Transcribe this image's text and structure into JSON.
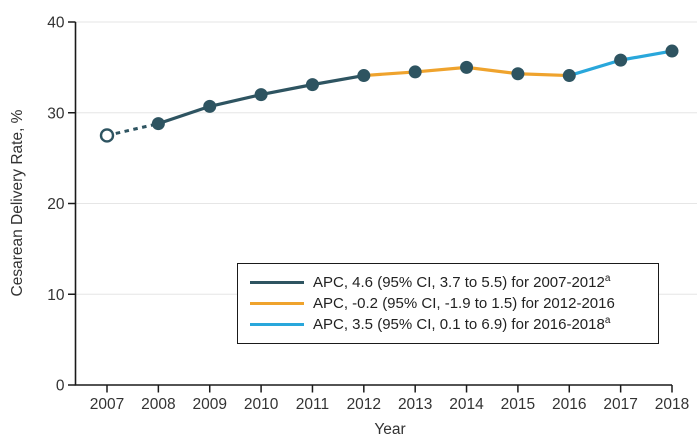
{
  "figure": {
    "background": "#ffffff"
  },
  "chart_data": {
    "type": "line",
    "title": "",
    "xlabel": "Year",
    "ylabel": "Cesarean Delivery Rate, %",
    "ylim": [
      0,
      40
    ],
    "yticks": [
      0,
      10,
      20,
      30,
      40
    ],
    "grid": "horizontal light gray lines at each y tick",
    "legend_position": "inside bottom-right, boxed",
    "axis_color": "#1a1a1a",
    "text_color": "#333333",
    "grid_color": "#e6e6e6",
    "years": [
      2007,
      2008,
      2009,
      2010,
      2011,
      2012,
      2013,
      2014,
      2015,
      2016,
      2017,
      2018
    ],
    "values": [
      27.5,
      28.8,
      30.7,
      32.0,
      33.1,
      34.1,
      34.5,
      35.0,
      34.3,
      34.1,
      35.8,
      36.8
    ],
    "marker": {
      "color": "#2E5461",
      "open_years": [
        2007
      ]
    },
    "segments": [
      {
        "label": "APC, 4.6 (95% CI, 3.7 to 5.5) for 2007-2012",
        "superscript": "a",
        "color": "#2E5461",
        "from_year": 2007,
        "to_year": 2012,
        "dashed_from": 2007,
        "dashed_to": 2008
      },
      {
        "label": "APC, -0.2 (95% CI, -1.9 to 1.5) for 2012-2016",
        "superscript": "",
        "color": "#EFA32D",
        "from_year": 2012,
        "to_year": 2016
      },
      {
        "label": "APC, 3.5 (95% CI, 0.1 to 6.9) for 2016-2018",
        "superscript": "a",
        "color": "#29A7DB",
        "from_year": 2016,
        "to_year": 2018
      }
    ]
  }
}
